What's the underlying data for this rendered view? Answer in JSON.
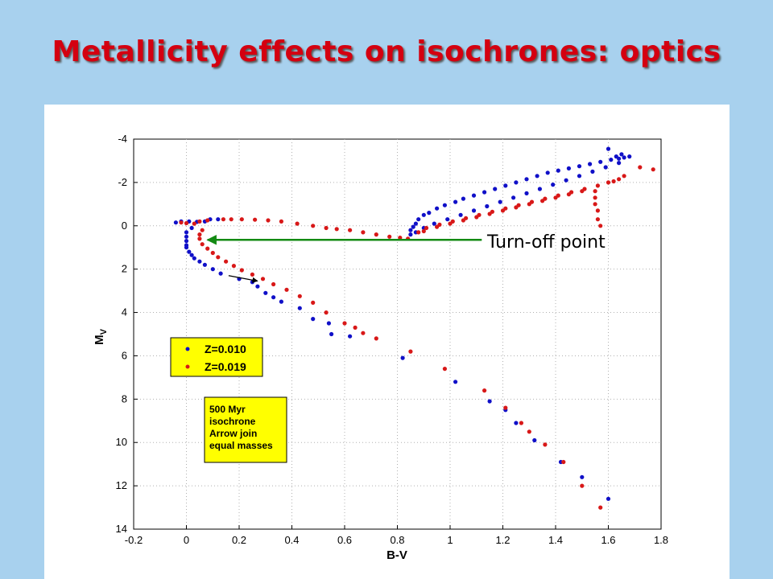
{
  "slide": {
    "title": "Metallicity effects on isochrones: optics"
  },
  "colors": {
    "background": "#a8d1ee",
    "title": "#d40010",
    "series_blue": "#1010c8",
    "series_red": "#d81818",
    "legend_fill": "#ffff00",
    "annotation_arrow": "#138a13"
  },
  "chart_data": {
    "type": "scatter",
    "xlabel": "B-V",
    "ylabel": "M",
    "ylabel_sub": "V",
    "xlim": [
      -0.2,
      1.8
    ],
    "ylim": [
      -4,
      14
    ],
    "y_inverted": true,
    "grid": true,
    "xticks": [
      "-0.2",
      "0",
      "0.2",
      "0.4",
      "0.6",
      "0.8",
      "1",
      "1.2",
      "1.4",
      "1.6",
      "1.8"
    ],
    "yticks": [
      "-4",
      "-2",
      "0",
      "2",
      "4",
      "6",
      "8",
      "10",
      "12",
      "14"
    ],
    "legend": {
      "placement": "left",
      "entries": [
        "Z=0.010",
        "Z=0.019"
      ]
    },
    "note": [
      "500 Myr",
      "isochrone",
      "Arrow join",
      "equal masses"
    ],
    "annotation": {
      "text": "Turn-off point",
      "arrow_from": [
        1.12,
        0.65
      ],
      "arrow_to": [
        0.08,
        0.65
      ]
    },
    "mass_arrow": {
      "from": [
        0.16,
        2.3
      ],
      "to": [
        0.27,
        2.55
      ]
    },
    "series": [
      {
        "name": "Z=0.010",
        "points": [
          [
            -0.04,
            -0.15
          ],
          [
            -0.02,
            -0.2
          ],
          [
            0.01,
            -0.2
          ],
          [
            0.04,
            -0.18
          ],
          [
            0.07,
            -0.2
          ],
          [
            0.09,
            -0.3
          ],
          [
            0.12,
            -0.3
          ],
          [
            0.02,
            0.1
          ],
          [
            0.0,
            0.3
          ],
          [
            0.0,
            0.5
          ],
          [
            0.0,
            0.7
          ],
          [
            0.0,
            0.9
          ],
          [
            0.0,
            1.0
          ],
          [
            0.01,
            1.2
          ],
          [
            0.02,
            1.35
          ],
          [
            0.03,
            1.5
          ],
          [
            0.05,
            1.65
          ],
          [
            0.07,
            1.8
          ],
          [
            0.1,
            2.0
          ],
          [
            0.13,
            2.2
          ],
          [
            0.2,
            2.45
          ],
          [
            0.25,
            2.6
          ],
          [
            0.27,
            2.8
          ],
          [
            0.3,
            3.1
          ],
          [
            0.33,
            3.3
          ],
          [
            0.36,
            3.5
          ],
          [
            0.43,
            3.8
          ],
          [
            0.48,
            4.3
          ],
          [
            0.54,
            4.5
          ],
          [
            0.55,
            5.0
          ],
          [
            0.62,
            5.1
          ],
          [
            0.82,
            6.1
          ],
          [
            0.85,
            0.4
          ],
          [
            0.85,
            0.2
          ],
          [
            0.86,
            0.05
          ],
          [
            0.87,
            -0.1
          ],
          [
            0.88,
            -0.3
          ],
          [
            0.9,
            -0.5
          ],
          [
            0.92,
            -0.6
          ],
          [
            0.95,
            -0.8
          ],
          [
            0.98,
            -0.95
          ],
          [
            1.02,
            -1.1
          ],
          [
            1.05,
            -1.25
          ],
          [
            1.09,
            -1.4
          ],
          [
            1.13,
            -1.55
          ],
          [
            1.17,
            -1.7
          ],
          [
            1.21,
            -1.85
          ],
          [
            1.25,
            -2.0
          ],
          [
            1.29,
            -2.15
          ],
          [
            1.33,
            -2.3
          ],
          [
            1.37,
            -2.45
          ],
          [
            1.41,
            -2.55
          ],
          [
            1.45,
            -2.65
          ],
          [
            1.49,
            -2.75
          ],
          [
            1.53,
            -2.85
          ],
          [
            1.57,
            -2.95
          ],
          [
            1.61,
            -3.05
          ],
          [
            1.64,
            -3.1
          ],
          [
            1.66,
            -3.15
          ],
          [
            1.68,
            -3.2
          ],
          [
            1.6,
            -3.55
          ],
          [
            1.63,
            -3.2
          ],
          [
            1.65,
            -3.3
          ],
          [
            0.87,
            0.3
          ],
          [
            0.9,
            0.1
          ],
          [
            0.94,
            -0.1
          ],
          [
            0.99,
            -0.3
          ],
          [
            1.04,
            -0.5
          ],
          [
            1.09,
            -0.7
          ],
          [
            1.14,
            -0.9
          ],
          [
            1.19,
            -1.1
          ],
          [
            1.24,
            -1.3
          ],
          [
            1.29,
            -1.5
          ],
          [
            1.34,
            -1.7
          ],
          [
            1.39,
            -1.9
          ],
          [
            1.44,
            -2.1
          ],
          [
            1.49,
            -2.3
          ],
          [
            1.54,
            -2.5
          ],
          [
            1.59,
            -2.7
          ],
          [
            1.64,
            -2.9
          ],
          [
            1.02,
            7.2
          ],
          [
            1.15,
            8.1
          ],
          [
            1.21,
            8.5
          ],
          [
            1.25,
            9.1
          ],
          [
            1.32,
            9.9
          ],
          [
            1.42,
            10.9
          ],
          [
            1.5,
            11.6
          ],
          [
            1.6,
            12.6
          ]
        ]
      },
      {
        "name": "Z=0.019",
        "points": [
          [
            -0.02,
            -0.15
          ],
          [
            0.0,
            -0.12
          ],
          [
            0.03,
            -0.1
          ],
          [
            0.05,
            -0.2
          ],
          [
            0.08,
            -0.25
          ],
          [
            0.14,
            -0.3
          ],
          [
            0.17,
            -0.3
          ],
          [
            0.21,
            -0.3
          ],
          [
            0.26,
            -0.28
          ],
          [
            0.31,
            -0.25
          ],
          [
            0.36,
            -0.2
          ],
          [
            0.42,
            -0.1
          ],
          [
            0.48,
            0.0
          ],
          [
            0.53,
            0.1
          ],
          [
            0.57,
            0.15
          ],
          [
            0.62,
            0.2
          ],
          [
            0.67,
            0.3
          ],
          [
            0.72,
            0.4
          ],
          [
            0.77,
            0.5
          ],
          [
            0.81,
            0.55
          ],
          [
            0.84,
            0.6
          ],
          [
            0.06,
            0.2
          ],
          [
            0.05,
            0.4
          ],
          [
            0.05,
            0.6
          ],
          [
            0.06,
            0.85
          ],
          [
            0.08,
            1.05
          ],
          [
            0.1,
            1.25
          ],
          [
            0.12,
            1.45
          ],
          [
            0.15,
            1.65
          ],
          [
            0.18,
            1.85
          ],
          [
            0.21,
            2.05
          ],
          [
            0.25,
            2.25
          ],
          [
            0.29,
            2.45
          ],
          [
            0.33,
            2.7
          ],
          [
            0.38,
            2.95
          ],
          [
            0.43,
            3.25
          ],
          [
            0.48,
            3.55
          ],
          [
            0.53,
            4.0
          ],
          [
            0.6,
            4.5
          ],
          [
            0.64,
            4.7
          ],
          [
            0.67,
            4.95
          ],
          [
            0.72,
            5.2
          ],
          [
            0.85,
            5.8
          ],
          [
            0.98,
            6.6
          ],
          [
            1.13,
            7.6
          ],
          [
            1.21,
            8.4
          ],
          [
            1.27,
            9.1
          ],
          [
            1.3,
            9.5
          ],
          [
            1.36,
            10.1
          ],
          [
            1.43,
            10.9
          ],
          [
            1.5,
            12.0
          ],
          [
            1.57,
            13.0
          ],
          [
            0.88,
            0.3
          ],
          [
            0.91,
            0.1
          ],
          [
            0.96,
            -0.05
          ],
          [
            1.01,
            -0.2
          ],
          [
            1.06,
            -0.35
          ],
          [
            1.11,
            -0.5
          ],
          [
            1.16,
            -0.65
          ],
          [
            1.21,
            -0.8
          ],
          [
            1.26,
            -0.95
          ],
          [
            1.31,
            -1.1
          ],
          [
            1.36,
            -1.25
          ],
          [
            1.41,
            -1.4
          ],
          [
            1.46,
            -1.55
          ],
          [
            1.51,
            -1.7
          ],
          [
            1.56,
            -1.85
          ],
          [
            1.6,
            -2.0
          ],
          [
            1.62,
            -2.05
          ],
          [
            1.64,
            -2.15
          ],
          [
            1.66,
            -2.3
          ],
          [
            1.72,
            -2.7
          ],
          [
            1.77,
            -2.6
          ],
          [
            1.55,
            -1.6
          ],
          [
            1.55,
            -1.3
          ],
          [
            1.55,
            -1.0
          ],
          [
            1.56,
            -0.7
          ],
          [
            1.56,
            -0.3
          ],
          [
            1.57,
            0.0
          ],
          [
            0.9,
            0.25
          ],
          [
            0.95,
            0.05
          ],
          [
            1.0,
            -0.1
          ],
          [
            1.05,
            -0.25
          ],
          [
            1.1,
            -0.4
          ],
          [
            1.15,
            -0.55
          ],
          [
            1.2,
            -0.7
          ],
          [
            1.25,
            -0.85
          ],
          [
            1.3,
            -1.0
          ],
          [
            1.35,
            -1.15
          ],
          [
            1.4,
            -1.3
          ],
          [
            1.45,
            -1.45
          ],
          [
            1.5,
            -1.6
          ]
        ]
      }
    ]
  }
}
